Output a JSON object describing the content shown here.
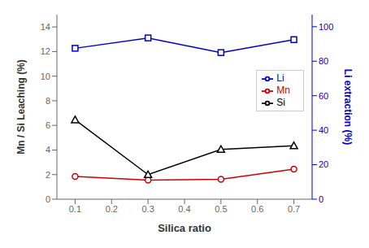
{
  "chart_data": {
    "type": "line",
    "xlabel": "Silica ratio",
    "ylabel": "Mn / Si Leaching (%)",
    "y2label": "Li extraction (%)",
    "x": [
      0.1,
      0.3,
      0.5,
      0.7
    ],
    "xlim": [
      0.05,
      0.75
    ],
    "xticks": [
      0.1,
      0.2,
      0.3,
      0.4,
      0.5,
      0.6,
      0.7
    ],
    "ylim": [
      0,
      15
    ],
    "yticks": [
      0,
      2,
      4,
      6,
      8,
      10,
      12,
      14
    ],
    "y2lim": [
      0,
      107
    ],
    "y2ticks": [
      0,
      20,
      40,
      60,
      80,
      100
    ],
    "grid": false,
    "legend": "center right",
    "series": [
      {
        "name": "Li",
        "color": "#0000cc",
        "marker": "square",
        "axis": "y2",
        "values": [
          87.5,
          93.5,
          85.0,
          92.5
        ]
      },
      {
        "name": "Mn",
        "color": "#cc0000",
        "marker": "circle",
        "values": [
          1.85,
          1.55,
          1.62,
          2.45
        ]
      },
      {
        "name": "Si",
        "color": "#000000",
        "marker": "triangle",
        "values": [
          6.45,
          2.0,
          4.05,
          4.35
        ]
      }
    ]
  }
}
